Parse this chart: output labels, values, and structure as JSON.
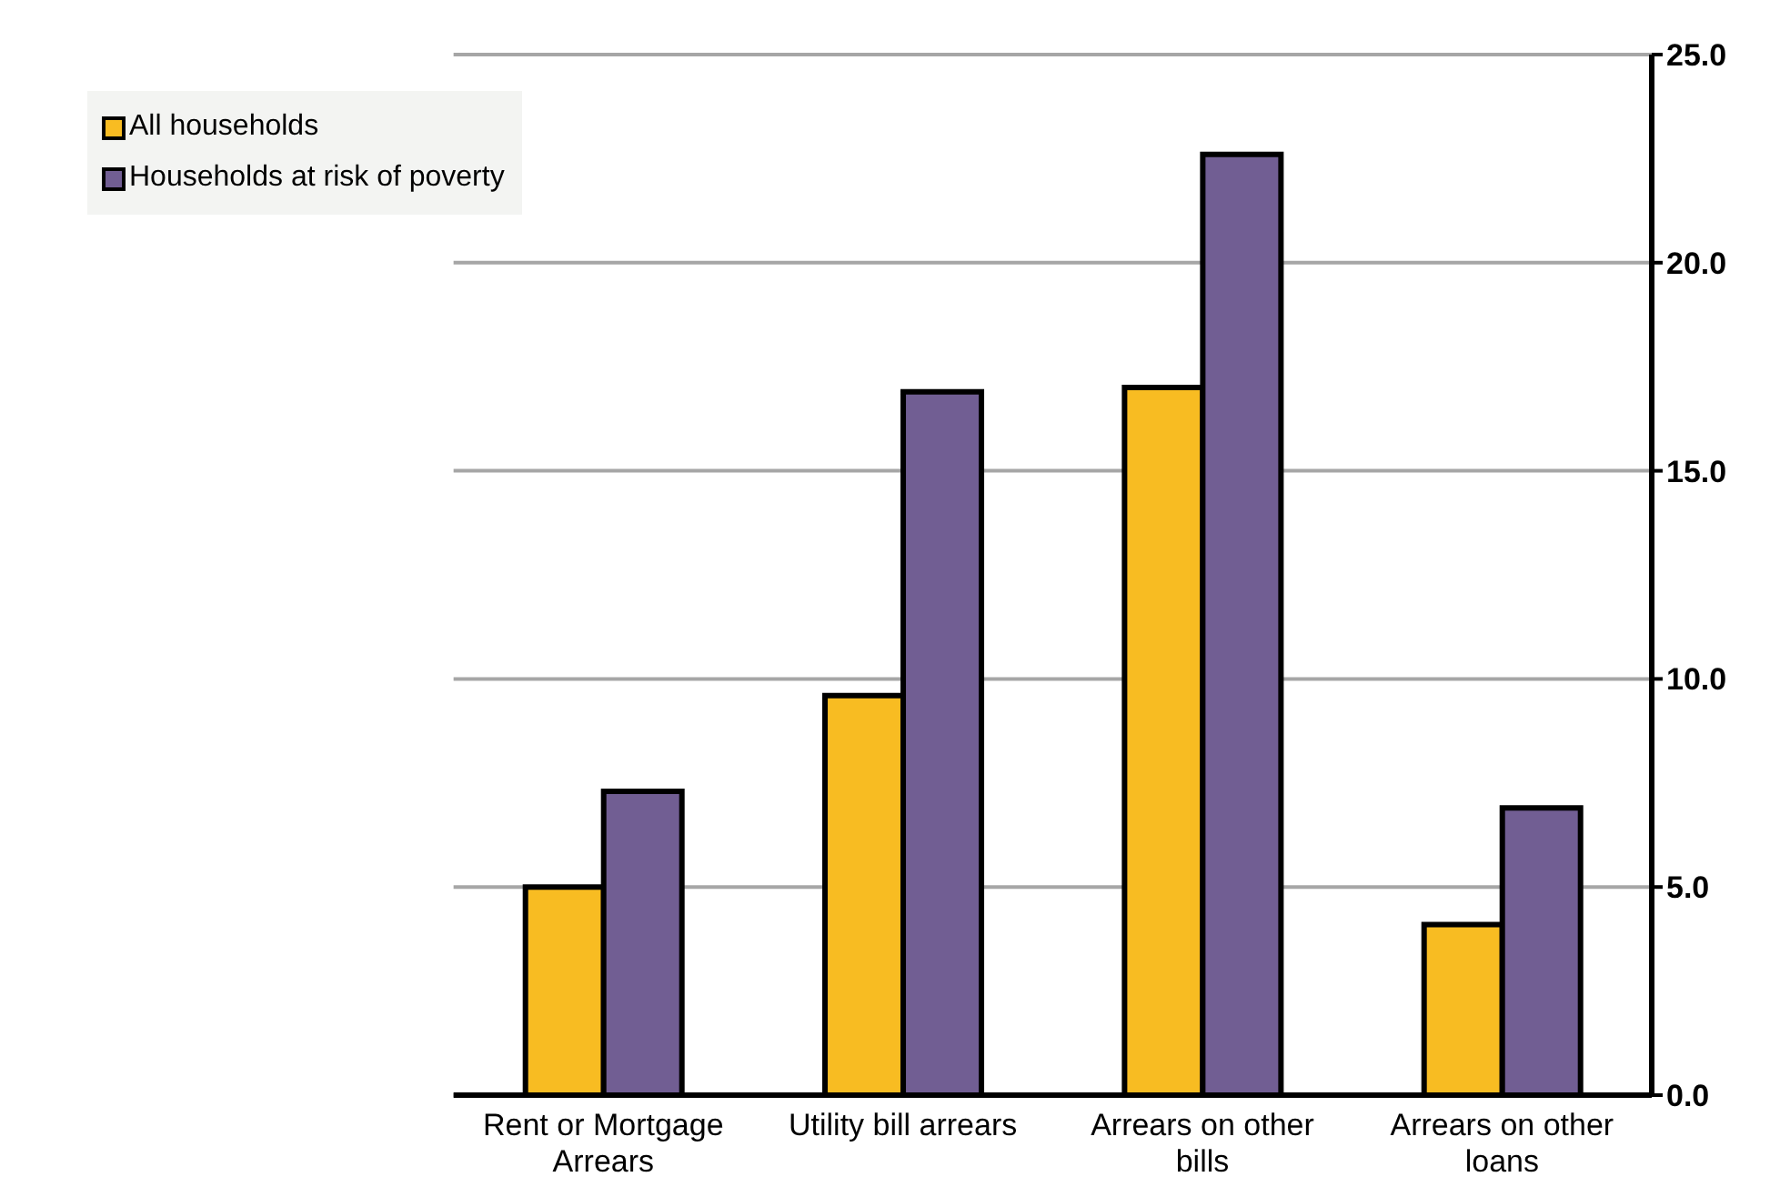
{
  "chart_data": {
    "type": "bar",
    "categories": [
      "Rent or Mortgage Arrears",
      "Utility bill arrears",
      "Arrears on other bills",
      "Arrears on other loans"
    ],
    "series": [
      {
        "name": "All households",
        "color": "#f8bc22",
        "values": [
          5.0,
          9.6,
          17.0,
          4.1
        ]
      },
      {
        "name": "Households at risk of poverty",
        "color": "#715e93",
        "values": [
          7.3,
          16.9,
          22.6,
          6.9
        ]
      }
    ],
    "ylim": [
      0,
      25
    ],
    "yticks": [
      {
        "value": 0,
        "label": "0.0"
      },
      {
        "value": 5,
        "label": "5.0"
      },
      {
        "value": 10,
        "label": "10.0"
      },
      {
        "value": 15,
        "label": "15.0"
      },
      {
        "value": 20,
        "label": "20.0"
      },
      {
        "value": 25,
        "label": "25.0"
      }
    ],
    "grid": "y",
    "legend": "top left"
  }
}
